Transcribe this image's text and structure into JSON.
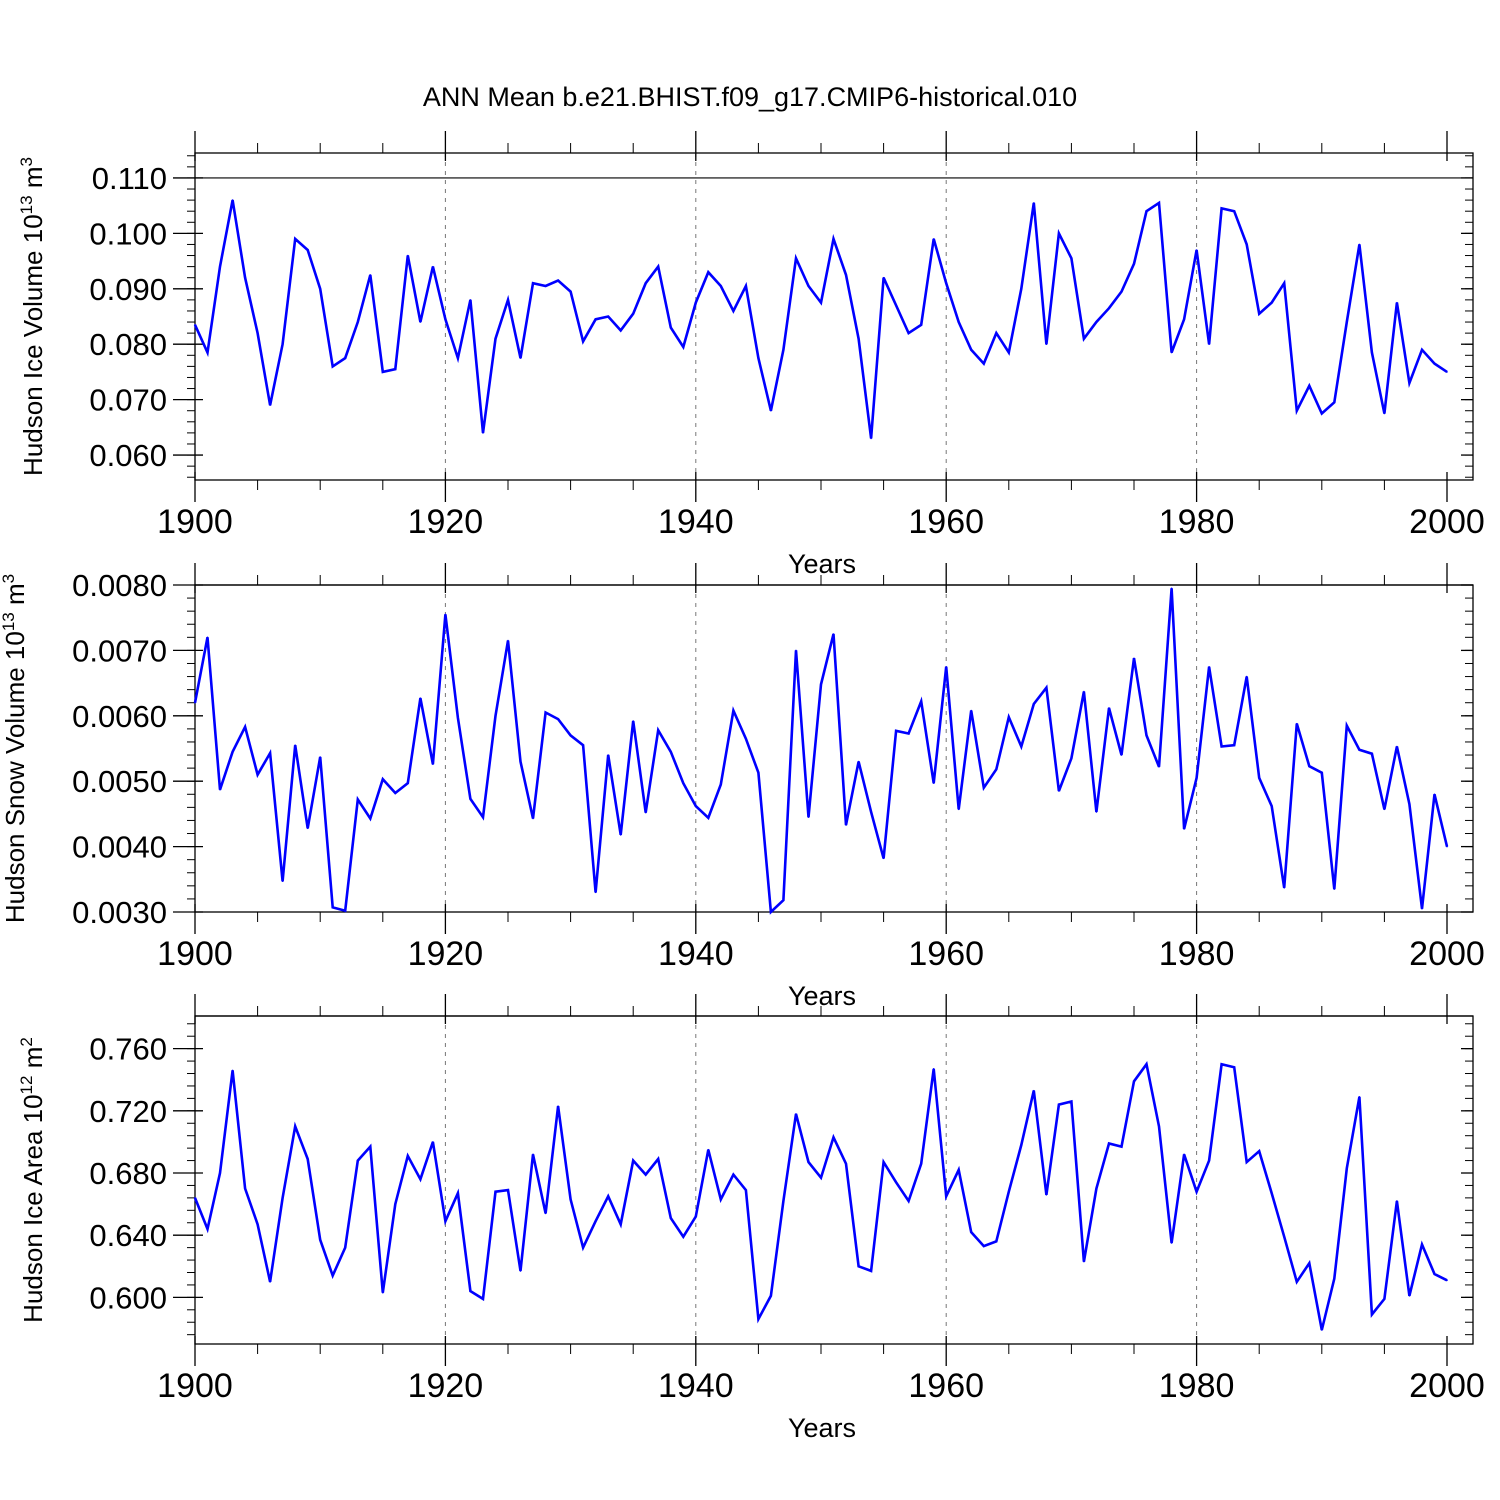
{
  "figure_title": "ANN Mean b.e21.BHIST.f09_g17.CMIP6-historical.010",
  "colors": {
    "line": "#0000ff",
    "axis": "#000000",
    "grid": "#777777"
  },
  "chart_data": [
    {
      "type": "line",
      "series_name": "Hudson Ice Volume",
      "ylabel_main": "Hudson Ice Volume 10",
      "ylabel_exp": "13",
      "ylabel_unit": " m",
      "ylabel_unit_exp": "3",
      "xlabel": "Years",
      "xlim": [
        1900,
        2000
      ],
      "ylim": [
        0.0555,
        0.1145
      ],
      "x_ticks": [
        "1900",
        "1920",
        "1940",
        "1960",
        "1980",
        "2000"
      ],
      "x_tick_values": [
        1900,
        1920,
        1940,
        1960,
        1980,
        2000
      ],
      "y_ticks": [
        "0.060",
        "0.070",
        "0.080",
        "0.090",
        "0.100",
        "0.110"
      ],
      "y_tick_values": [
        0.06,
        0.07,
        0.08,
        0.09,
        0.1,
        0.11
      ],
      "y_minor_step": 0.002,
      "ref_line": 0.11,
      "x_start": 1900,
      "values": [
        0.0835,
        0.0785,
        0.094,
        0.106,
        0.092,
        0.082,
        0.069,
        0.08,
        0.099,
        0.097,
        0.09,
        0.076,
        0.0775,
        0.084,
        0.0925,
        0.075,
        0.0755,
        0.096,
        0.084,
        0.094,
        0.0845,
        0.0775,
        0.088,
        0.064,
        0.081,
        0.088,
        0.0775,
        0.091,
        0.0905,
        0.0915,
        0.0895,
        0.0805,
        0.0845,
        0.085,
        0.0825,
        0.0855,
        0.091,
        0.094,
        0.083,
        0.0795,
        0.0875,
        0.093,
        0.0905,
        0.086,
        0.0905,
        0.0775,
        0.068,
        0.079,
        0.0955,
        0.0905,
        0.0875,
        0.099,
        0.0925,
        0.081,
        0.063,
        0.092,
        0.087,
        0.082,
        0.0835,
        0.099,
        0.091,
        0.084,
        0.079,
        0.0765,
        0.082,
        0.0785,
        0.09,
        0.1055,
        0.08,
        0.1,
        0.0955,
        0.081,
        0.084,
        0.0865,
        0.0895,
        0.0945,
        0.104,
        0.1055,
        0.0785,
        0.0845,
        0.097,
        0.08,
        0.1045,
        0.104,
        0.098,
        0.0855,
        0.0875,
        0.091,
        0.068,
        0.0725,
        0.0675,
        0.0695,
        0.084,
        0.098,
        0.0785,
        0.0675,
        0.0875,
        0.073,
        0.079,
        0.0765,
        0.075
      ]
    },
    {
      "type": "line",
      "series_name": "Hudson Snow Volume",
      "ylabel_main": "Hudson Snow Volume 10",
      "ylabel_exp": "13",
      "ylabel_unit": " m",
      "ylabel_unit_exp": "3",
      "xlabel": "Years",
      "xlim": [
        1900,
        2000
      ],
      "ylim": [
        0.003,
        0.008
      ],
      "x_ticks": [
        "1900",
        "1920",
        "1940",
        "1960",
        "1980",
        "2000"
      ],
      "x_tick_values": [
        1900,
        1920,
        1940,
        1960,
        1980,
        2000
      ],
      "y_ticks": [
        "0.0030",
        "0.0040",
        "0.0050",
        "0.0060",
        "0.0070",
        "0.0080"
      ],
      "y_tick_values": [
        0.003,
        0.004,
        0.005,
        0.006,
        0.007,
        0.008
      ],
      "y_minor_step": 0.0002,
      "ref_line": 0.008,
      "x_start": 1900,
      "values": [
        0.0062,
        0.0072,
        0.00487,
        0.00545,
        0.00583,
        0.0051,
        0.00543,
        0.00347,
        0.00555,
        0.00428,
        0.00537,
        0.00307,
        0.00302,
        0.00472,
        0.00443,
        0.00503,
        0.00482,
        0.00497,
        0.00627,
        0.00526,
        0.00755,
        0.00597,
        0.00473,
        0.00445,
        0.006,
        0.00715,
        0.0053,
        0.00443,
        0.00605,
        0.00595,
        0.0057,
        0.00555,
        0.0033,
        0.0054,
        0.00418,
        0.00592,
        0.00452,
        0.00578,
        0.00545,
        0.00497,
        0.00462,
        0.00444,
        0.00495,
        0.00608,
        0.00565,
        0.00513,
        0.003,
        0.00318,
        0.007,
        0.00445,
        0.00648,
        0.00725,
        0.00433,
        0.0053,
        0.00453,
        0.00382,
        0.00577,
        0.00573,
        0.00622,
        0.00497,
        0.00675,
        0.00457,
        0.00608,
        0.0049,
        0.00518,
        0.00598,
        0.00553,
        0.00618,
        0.00643,
        0.00485,
        0.00535,
        0.00637,
        0.00453,
        0.00612,
        0.0054,
        0.00688,
        0.0057,
        0.00522,
        0.00795,
        0.00427,
        0.00505,
        0.00675,
        0.00553,
        0.00555,
        0.0066,
        0.00505,
        0.00462,
        0.00337,
        0.00588,
        0.00523,
        0.00513,
        0.00335,
        0.00585,
        0.00548,
        0.00542,
        0.00457,
        0.00553,
        0.00465,
        0.00305,
        0.0048,
        0.004
      ]
    },
    {
      "type": "line",
      "series_name": "Hudson Ice Area",
      "ylabel_main": "Hudson Ice Area 10",
      "ylabel_exp": "12",
      "ylabel_unit": " m",
      "ylabel_unit_exp": "2",
      "xlabel": "Years",
      "xlim": [
        1900,
        2000
      ],
      "ylim": [
        0.57,
        0.781
      ],
      "x_ticks": [
        "1900",
        "1920",
        "1940",
        "1960",
        "1980",
        "2000"
      ],
      "x_tick_values": [
        1900,
        1920,
        1940,
        1960,
        1980,
        2000
      ],
      "y_ticks": [
        "0.600",
        "0.640",
        "0.680",
        "0.720",
        "0.760"
      ],
      "y_tick_values": [
        0.6,
        0.64,
        0.68,
        0.72,
        0.76
      ],
      "y_minor_step": 0.008,
      "ref_line": 0.781,
      "x_start": 1900,
      "values": [
        0.664,
        0.644,
        0.68,
        0.746,
        0.67,
        0.647,
        0.61,
        0.664,
        0.71,
        0.689,
        0.637,
        0.614,
        0.632,
        0.688,
        0.697,
        0.603,
        0.66,
        0.691,
        0.676,
        0.7,
        0.649,
        0.667,
        0.604,
        0.599,
        0.668,
        0.669,
        0.617,
        0.692,
        0.654,
        0.723,
        0.663,
        0.632,
        0.649,
        0.665,
        0.647,
        0.688,
        0.679,
        0.689,
        0.651,
        0.639,
        0.652,
        0.695,
        0.663,
        0.679,
        0.669,
        0.586,
        0.601,
        0.662,
        0.718,
        0.687,
        0.677,
        0.703,
        0.686,
        0.62,
        0.617,
        0.687,
        0.674,
        0.662,
        0.686,
        0.747,
        0.665,
        0.682,
        0.642,
        0.633,
        0.636,
        0.668,
        0.698,
        0.733,
        0.666,
        0.724,
        0.726,
        0.623,
        0.67,
        0.699,
        0.697,
        0.739,
        0.75,
        0.71,
        0.635,
        0.692,
        0.668,
        0.688,
        0.75,
        0.748,
        0.687,
        0.694,
        0.667,
        0.639,
        0.61,
        0.622,
        0.579,
        0.612,
        0.683,
        0.729,
        0.589,
        0.599,
        0.662,
        0.601,
        0.634,
        0.615,
        0.611
      ]
    }
  ]
}
